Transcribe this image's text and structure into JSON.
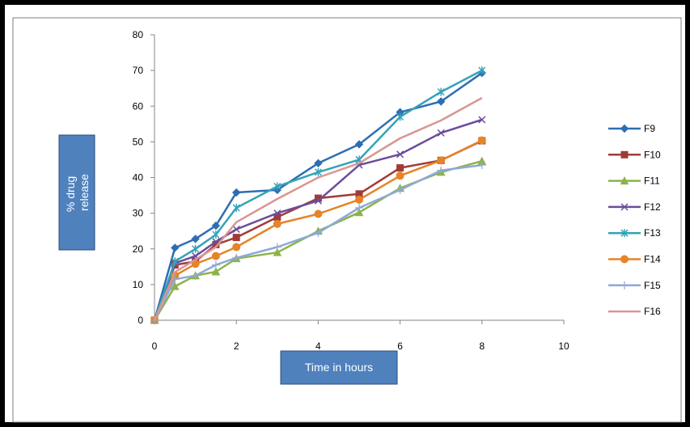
{
  "chart_data": {
    "type": "line",
    "title": "",
    "xlabel": "Time in hours",
    "ylabel": "% drug release",
    "xlim": [
      0,
      10
    ],
    "ylim": [
      0,
      80
    ],
    "xticks": [
      0,
      2,
      4,
      6,
      8,
      10
    ],
    "yticks": [
      0,
      10,
      20,
      30,
      40,
      50,
      60,
      70,
      80
    ],
    "grid": false,
    "legend_position": "right",
    "x": [
      0,
      0.5,
      1,
      1.5,
      2,
      3,
      4,
      5,
      6,
      7,
      8
    ],
    "series": [
      {
        "name": "F9",
        "color": "#2E6DB4",
        "marker": "diamond",
        "values": [
          0,
          20.3,
          22.8,
          26.5,
          35.8,
          36.5,
          44,
          49.3,
          58.3,
          61.3,
          69.3
        ]
      },
      {
        "name": "F10",
        "color": "#A23B36",
        "marker": "square",
        "values": [
          0,
          15.5,
          16.5,
          21.2,
          23.2,
          28.9,
          34.2,
          35.4,
          42.7,
          44.8,
          50.3
        ]
      },
      {
        "name": "F11",
        "color": "#8DB348",
        "marker": "triangle",
        "values": [
          0,
          9.5,
          12.5,
          13.6,
          17.3,
          19,
          25,
          30.2,
          37,
          41.5,
          44.6
        ]
      },
      {
        "name": "F12",
        "color": "#6B4D9A",
        "marker": "x",
        "values": [
          0,
          16,
          18,
          22,
          25.5,
          30,
          33.5,
          43.5,
          46.5,
          52.5,
          56.2
        ]
      },
      {
        "name": "F13",
        "color": "#34A3B8",
        "marker": "star",
        "values": [
          0,
          16.5,
          20,
          24,
          31.5,
          37.5,
          41.5,
          45,
          57,
          64,
          70
        ]
      },
      {
        "name": "F14",
        "color": "#E58428",
        "marker": "circle",
        "values": [
          0,
          12.5,
          15.8,
          18,
          20.5,
          27,
          29.8,
          33.8,
          40.5,
          44.8,
          50.4
        ]
      },
      {
        "name": "F15",
        "color": "#8EA9D9",
        "marker": "plus",
        "values": [
          0,
          11.5,
          12.5,
          15.5,
          17.5,
          20.5,
          24.5,
          31.5,
          36.5,
          42,
          43.5
        ]
      },
      {
        "name": "F16",
        "color": "#D99594",
        "marker": "none",
        "values": [
          0,
          13.5,
          17,
          20.5,
          27.5,
          34,
          40,
          44,
          51,
          56,
          62.3
        ]
      }
    ]
  }
}
